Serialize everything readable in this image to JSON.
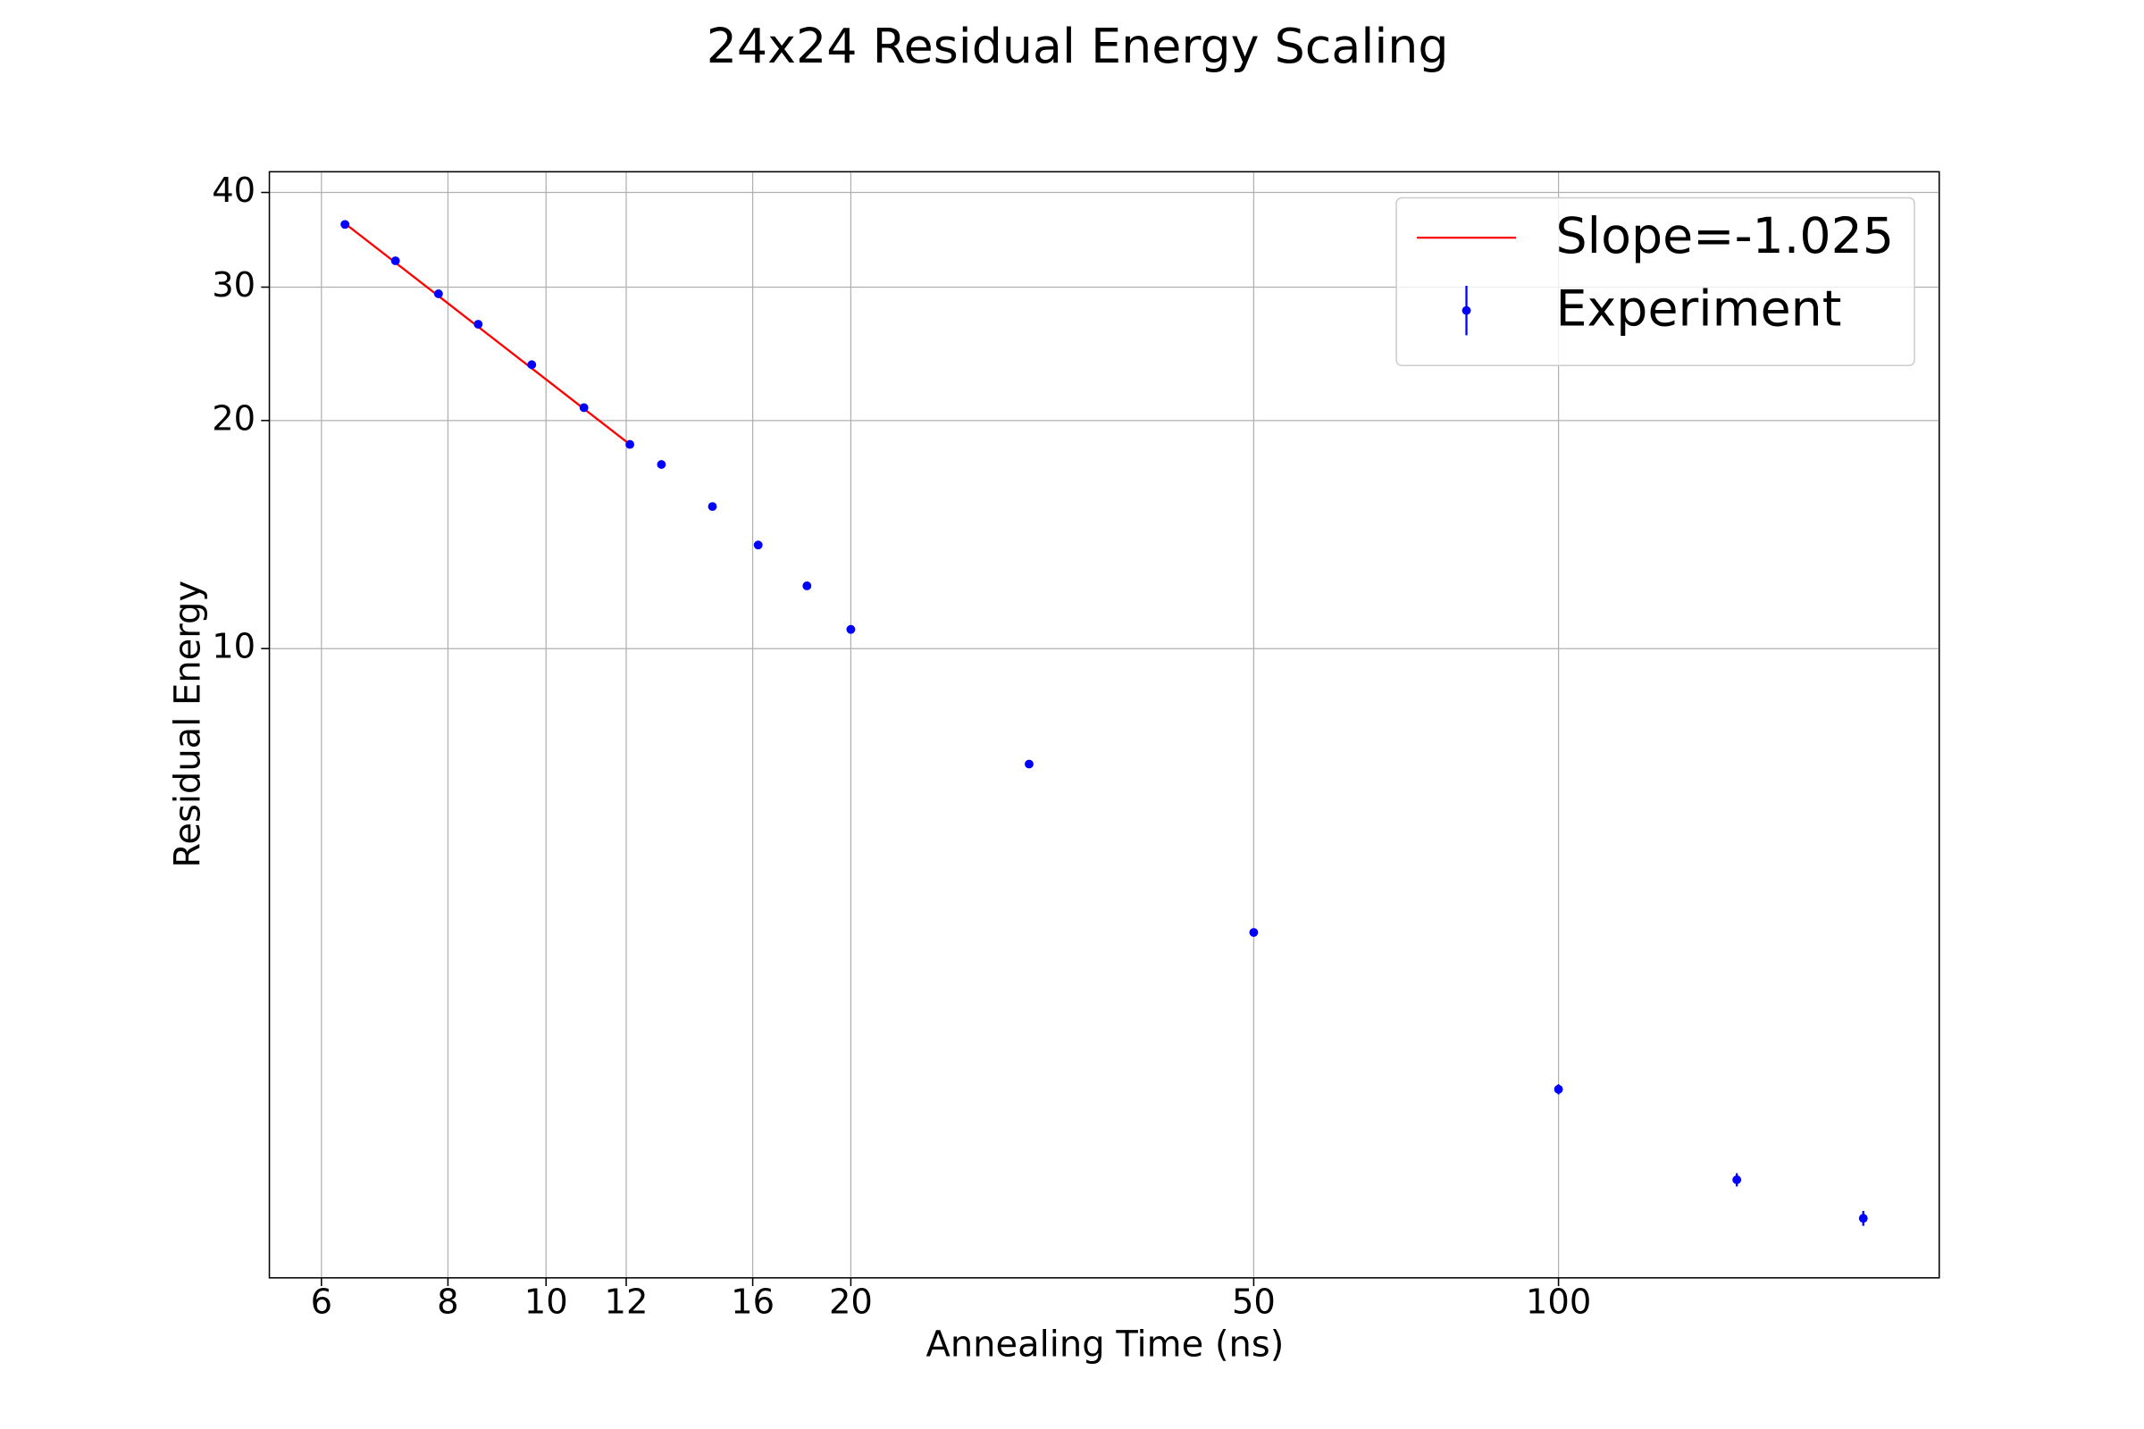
{
  "chart_data": {
    "type": "scatter",
    "title": "24x24 Residual Energy Scaling",
    "xlabel": "Annealing Time (ns)",
    "ylabel": "Residual Energy",
    "xscale": "log",
    "yscale": "log",
    "xlim": [
      5.33,
      237.7
    ],
    "ylim": [
      1.477,
      42.6
    ],
    "xticks": [
      6,
      8,
      10,
      12,
      16,
      20,
      50,
      100
    ],
    "yticks": [
      10,
      20,
      30,
      40
    ],
    "grid": true,
    "legend": "upper right",
    "series": [
      {
        "name": "Slope=-1.025",
        "type": "line",
        "color": "red",
        "x": [
          6.33,
          12.1
        ],
        "values": [
          36.4,
          18.6
        ]
      },
      {
        "name": "Experiment",
        "type": "errorbar",
        "color": "blue",
        "x": [
          6.33,
          7.1,
          7.83,
          8.57,
          9.68,
          10.9,
          12.1,
          13,
          14.6,
          16.2,
          18.1,
          20,
          30,
          50,
          100,
          150,
          200
        ],
        "values": [
          36.3,
          32.5,
          29.4,
          26.8,
          23.7,
          20.8,
          18.6,
          17.5,
          15.4,
          13.7,
          12.1,
          10.6,
          7.04,
          4.22,
          2.62,
          1.99,
          1.77
        ],
        "errors": [
          0.2,
          0.2,
          0.2,
          0.15,
          0.15,
          0.1,
          0.1,
          0.1,
          0.1,
          0.08,
          0.08,
          0.08,
          0.05,
          0.04,
          0.04,
          0.04,
          0.04
        ]
      }
    ]
  }
}
